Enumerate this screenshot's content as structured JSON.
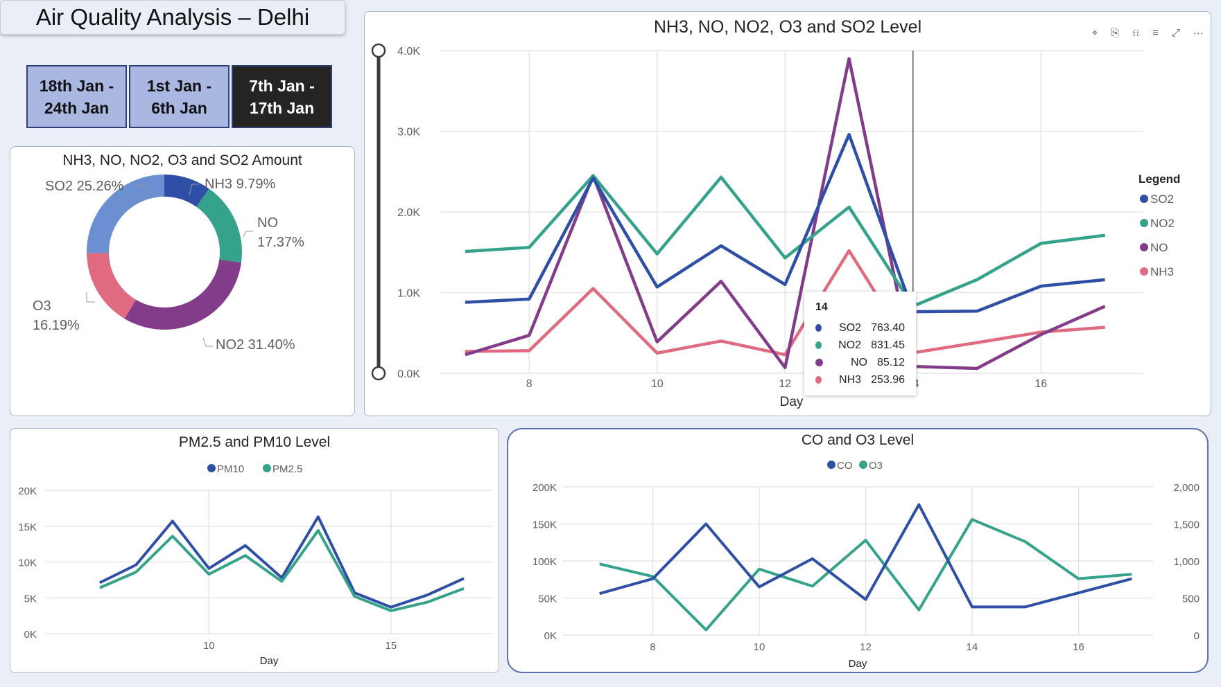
{
  "page_title": "Air Quality Analysis – Delhi",
  "filters": [
    {
      "label": "18th Jan -\n24th Jan",
      "active": false
    },
    {
      "label": "1st Jan -\n6th Jan",
      "active": false
    },
    {
      "label": "7th Jan -\n17th Jan",
      "active": true
    }
  ],
  "colors": {
    "so2": "#2e4fa5",
    "no2": "#35a28c",
    "no": "#833c8a",
    "nh3": "#e06a80",
    "o3": "#e06a80",
    "o3_pie": "#e06a80",
    "so2_pie": "#6b8fd1",
    "nh3_pie": "#2e4fa5",
    "no_pie": "#35a28c",
    "no2_pie": "#833c8a",
    "pm10": "#2e4fa5",
    "pm25": "#35a28c",
    "co": "#2e4fa5",
    "o3_line": "#35a28c"
  },
  "visual_header_icons": [
    "pin-icon",
    "copy-icon",
    "bell-icon",
    "filter-icon",
    "focus-mode-icon",
    "more-options-icon"
  ],
  "tooltip": {
    "title": "14",
    "rows": [
      {
        "name": "SO2",
        "value": "763.40",
        "color": "#2e4fa5"
      },
      {
        "name": "NO2",
        "value": "831.45",
        "color": "#35a28c"
      },
      {
        "name": "NO",
        "value": "85.12",
        "color": "#833c8a"
      },
      {
        "name": "NH3",
        "value": "253.96",
        "color": "#e06a80"
      }
    ]
  },
  "chart_data": [
    {
      "type": "pie",
      "title": "NH3, NO, NO2, O3 and SO2 Amount",
      "donut": true,
      "categories": [
        "NH3",
        "NO",
        "NO2",
        "O3",
        "SO2"
      ],
      "values": [
        9.79,
        17.37,
        31.4,
        16.19,
        25.26
      ],
      "labels": [
        "NH3 9.79%",
        "NO 17.37%",
        "NO2 31.40%",
        "O3 16.19%",
        "SO2 25.26%"
      ],
      "colors": [
        "#2e4fa5",
        "#35a28c",
        "#833c8a",
        "#e06a80",
        "#6b8fd1"
      ]
    },
    {
      "type": "line",
      "title": "NH3, NO, NO2, O3 and SO2 Level",
      "xlabel": "Day",
      "x": [
        7,
        8,
        9,
        10,
        11,
        12,
        13,
        14,
        15,
        16,
        17
      ],
      "xticks": [
        8,
        10,
        12,
        14,
        16
      ],
      "ylim": [
        0,
        4000
      ],
      "yticks": [
        "0.0K",
        "1.0K",
        "2.0K",
        "3.0K",
        "4.0K"
      ],
      "legend_title": "Legend",
      "legend_position": "right",
      "series": [
        {
          "name": "SO2",
          "color": "#2e4fa5",
          "values": [
            880,
            920,
            2420,
            1070,
            1580,
            1100,
            2960,
            763.4,
            770,
            1080,
            1160
          ]
        },
        {
          "name": "NO2",
          "color": "#35a28c",
          "values": [
            1510,
            1560,
            2450,
            1480,
            2430,
            1430,
            2060,
            831.45,
            1160,
            1610,
            1710
          ]
        },
        {
          "name": "NO",
          "color": "#833c8a",
          "values": [
            230,
            470,
            2450,
            390,
            1140,
            70,
            3900,
            85.12,
            60,
            480,
            830
          ]
        },
        {
          "name": "NH3",
          "color": "#e06a80",
          "values": [
            270,
            280,
            1050,
            250,
            400,
            230,
            1520,
            253.96,
            380,
            510,
            570
          ]
        }
      ],
      "hover_x": 14
    },
    {
      "type": "line",
      "title": "PM2.5 and PM10 Level",
      "xlabel": "Day",
      "x": [
        7,
        8,
        9,
        10,
        11,
        12,
        13,
        14,
        15,
        16,
        17
      ],
      "xticks": [
        10,
        15
      ],
      "ylim": [
        0,
        20000
      ],
      "yticks": [
        "0K",
        "5K",
        "10K",
        "15K",
        "20K"
      ],
      "legend_position": "top",
      "series": [
        {
          "name": "PM10",
          "color": "#2e4fa5",
          "values": [
            7100,
            9600,
            15700,
            9100,
            12300,
            7800,
            16300,
            5700,
            3700,
            5400,
            7700
          ]
        },
        {
          "name": "PM2.5",
          "color": "#35a28c",
          "values": [
            6400,
            8600,
            13600,
            8300,
            10900,
            7300,
            14400,
            5200,
            3200,
            4400,
            6300
          ]
        }
      ]
    },
    {
      "type": "line",
      "title": "CO and O3 Level",
      "xlabel": "Day",
      "x": [
        7,
        8,
        9,
        10,
        11,
        12,
        13,
        14,
        15,
        16,
        17
      ],
      "xticks": [
        8,
        10,
        12,
        14,
        16
      ],
      "ylim_left": [
        0,
        200000
      ],
      "yticks_left": [
        "0K",
        "50K",
        "100K",
        "150K",
        "200K"
      ],
      "ylim_right": [
        0,
        2000
      ],
      "yticks_right": [
        "0",
        "500",
        "1,000",
        "1,500",
        "2,000"
      ],
      "legend_position": "top",
      "series": [
        {
          "name": "CO",
          "axis": "left",
          "color": "#2e4fa5",
          "values": [
            56000,
            76000,
            150000,
            65000,
            103000,
            48000,
            176000,
            38000,
            38000,
            57000,
            76000
          ]
        },
        {
          "name": "O3",
          "axis": "right",
          "color": "#35a28c",
          "values": [
            960,
            790,
            70,
            890,
            660,
            1280,
            340,
            1560,
            1260,
            760,
            820
          ]
        }
      ]
    }
  ]
}
